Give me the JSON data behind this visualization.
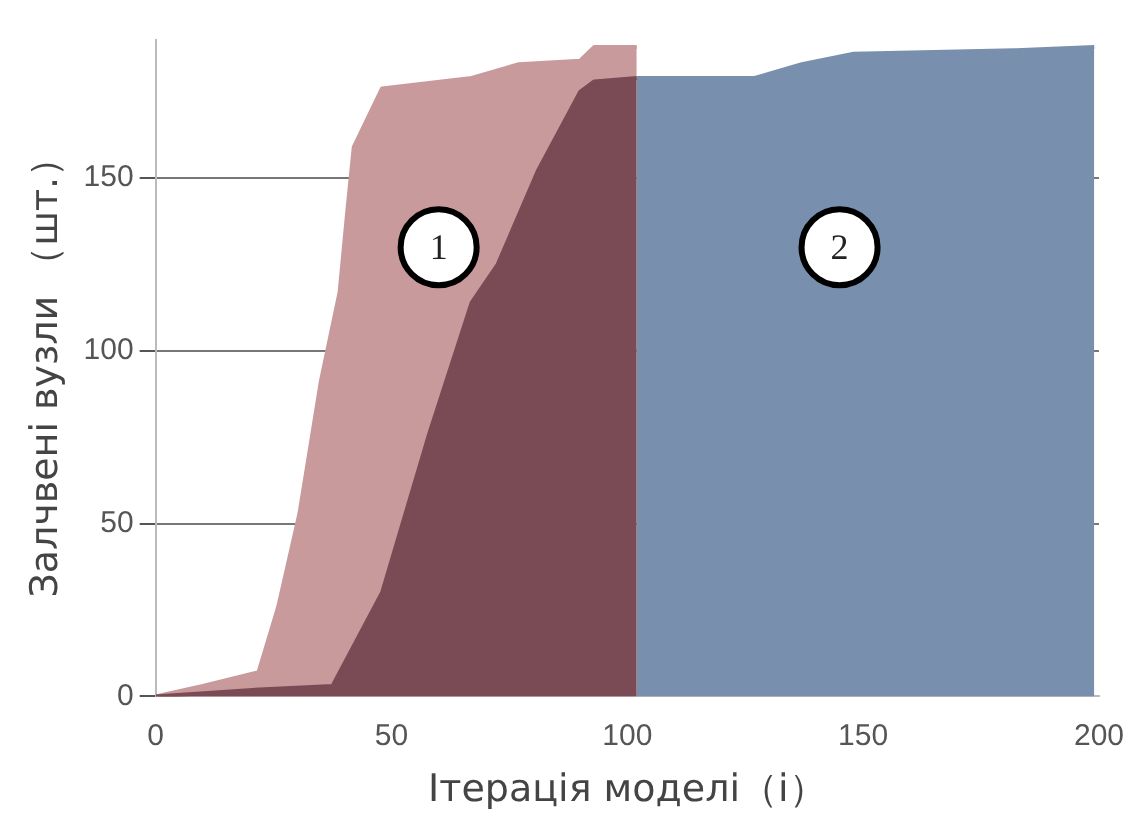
{
  "chart_data": {
    "type": "area",
    "xlabel": "Ітерація моделі（i）",
    "ylabel": "Залчвені вузли （шт.）",
    "xlim": [
      0,
      200
    ],
    "xticks": [
      0,
      50,
      100,
      150,
      200
    ],
    "ylim": [
      0,
      190
    ],
    "yticks": [
      0,
      50,
      100,
      150
    ],
    "grid": "y",
    "series": [
      {
        "color": "#7a4a55",
        "x": [
          0,
          22,
          37.5,
          48,
          58,
          67,
          72.5,
          81,
          90,
          93,
          102
        ],
        "values": [
          0,
          2,
          3,
          30,
          76,
          114,
          125,
          152,
          175,
          178,
          179
        ]
      },
      {
        "color": "#c99a9c",
        "x": [
          0,
          10,
          21.8,
          26,
          30.5,
          35,
          39,
          40.6,
          42,
          48,
          67,
          77,
          90,
          93,
          102
        ],
        "values": [
          0,
          3,
          7,
          26,
          53,
          91,
          117,
          140,
          159,
          176,
          179,
          183,
          184,
          188,
          188
        ]
      },
      {
        "color": "#7890ad",
        "x": [
          102,
          127,
          137,
          148,
          182,
          199
        ],
        "values": [
          179,
          179,
          183,
          186,
          187,
          188
        ]
      }
    ],
    "annotations": [
      {
        "text": "1",
        "x": 60,
        "y": 130
      },
      {
        "text": "2",
        "x": 145,
        "y": 130
      }
    ]
  }
}
